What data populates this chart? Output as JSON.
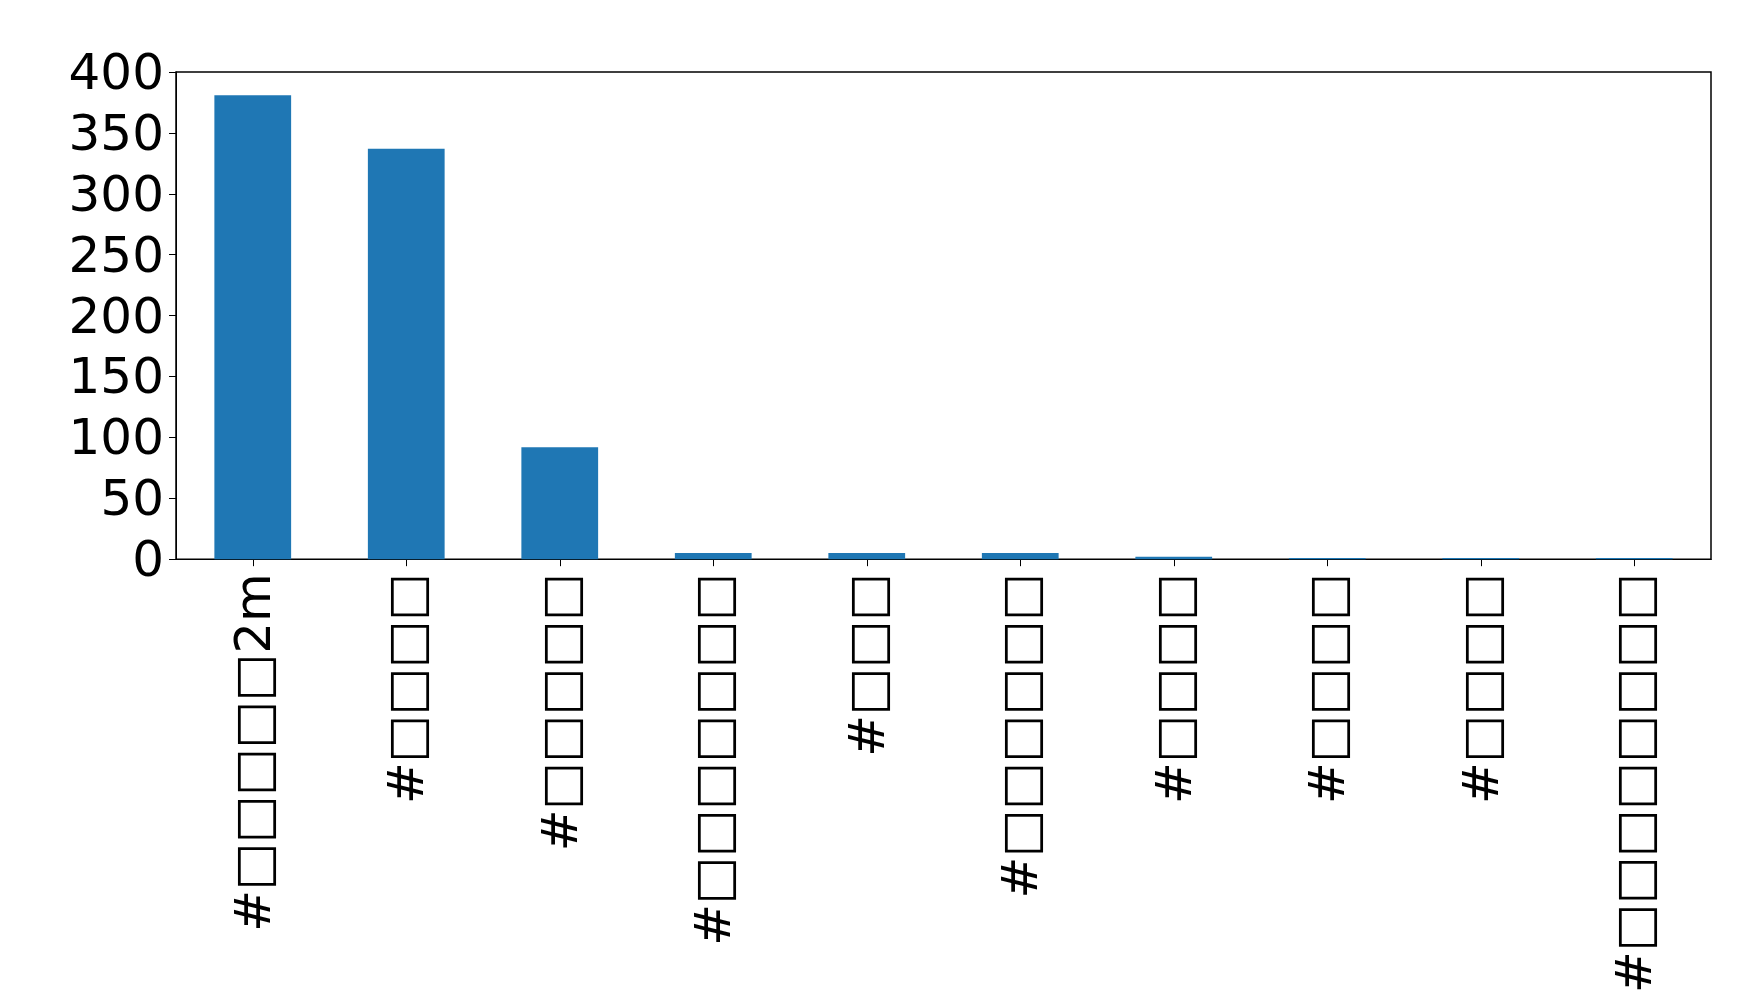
{
  "chart_data": {
    "type": "bar",
    "categories": [
      "#□□□□□2m",
      "#□□□□",
      "#□□□□□",
      "#□□□□□□□",
      "#□□□",
      "#□□□□□□",
      "#□□□□",
      "#□□□□",
      "#□□□□",
      "#□□□□□□□□"
    ],
    "values": [
      381,
      337,
      92,
      5,
      5,
      5,
      2,
      1,
      1,
      1
    ],
    "color": "#1f77b4",
    "ylim": [
      0,
      400
    ],
    "yticks": [
      0,
      50,
      100,
      150,
      200,
      250,
      300,
      350,
      400
    ],
    "grid": false
  }
}
